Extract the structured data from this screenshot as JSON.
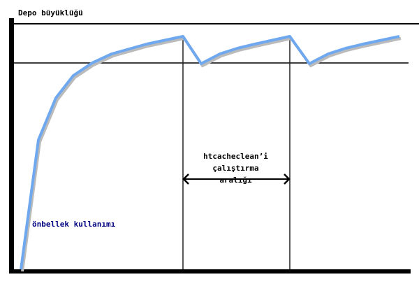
{
  "title": "Depo büyüklüğü",
  "usage_label": "önbellek kullanımı",
  "interval_label": [
    "htcacheclean’i",
    "çalıştırma",
    "aralığı"
  ],
  "colors": {
    "curve": "#6fa8ee",
    "axes": "#000000",
    "usage_label": "#000080"
  }
}
